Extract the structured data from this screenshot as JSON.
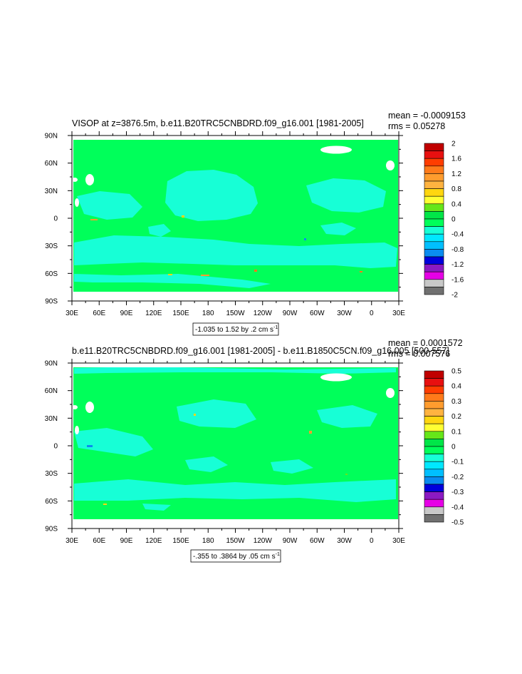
{
  "chart_data": [
    {
      "type": "heatmap",
      "title": "VISOP at z=3876.5m, b.e11.B20TRC5CNBDRD.f09_g16.001 [1981-2005]",
      "stats": {
        "mean": "mean = -0.0009153",
        "rms": "rms = 0.05278"
      },
      "xticks": [
        "30E",
        "60E",
        "90E",
        "120E",
        "150E",
        "180",
        "150W",
        "120W",
        "90W",
        "60W",
        "30W",
        "0",
        "30E"
      ],
      "yticks": [
        "90N",
        "60N",
        "30N",
        "0",
        "30S",
        "60S",
        "90S"
      ],
      "xlim_deg": [
        30,
        390
      ],
      "ylim_deg": [
        -90,
        90
      ],
      "dominant_value_band": [
        0,
        0.4
      ],
      "secondary_value_band": [
        -0.4,
        0
      ],
      "range_label": {
        "text": "-1.035 to 1.52 by .2 cm s",
        "sup": "-1"
      },
      "colorbar_labels": [
        "2",
        "1.6",
        "1.2",
        "0.8",
        "0.4",
        "0",
        "-0.4",
        "-0.8",
        "-1.2",
        "-1.6",
        "-2"
      ]
    },
    {
      "type": "heatmap",
      "title": "b.e11.B20TRC5CNBDRD.f09_g16.001 [1981-2005] - b.e11.B1850C5CN.f09_g16.005 [500-557]",
      "stats": {
        "mean": "mean = 0.0001572",
        "rms": "rms = 0.007576"
      },
      "xticks": [
        "30E",
        "60E",
        "90E",
        "120E",
        "150E",
        "180",
        "150W",
        "120W",
        "90W",
        "60W",
        "30W",
        "0",
        "30E"
      ],
      "yticks": [
        "90N",
        "60N",
        "30N",
        "0",
        "30S",
        "60S",
        "90S"
      ],
      "xlim_deg": [
        30,
        390
      ],
      "ylim_deg": [
        -90,
        90
      ],
      "dominant_value_band": [
        0,
        0.1
      ],
      "secondary_value_band": [
        -0.1,
        0
      ],
      "range_label": {
        "text": "-.355 to .3864 by .05 cm s",
        "sup": "-1"
      },
      "colorbar_labels": [
        "0.5",
        "0.4",
        "0.3",
        "0.2",
        "0.1",
        "0",
        "-0.1",
        "-0.2",
        "-0.3",
        "-0.4",
        "-0.5"
      ]
    }
  ],
  "colors": {
    "background": "#ffffff",
    "ocean_main": "#00ff5a",
    "ocean_secondary": "#17ffd6",
    "land": "#ffffff",
    "palette": [
      "#c00000",
      "#e81010",
      "#ff3d00",
      "#ff7a1a",
      "#ff9c2e",
      "#ffb340",
      "#ffd60f",
      "#ffff33",
      "#66e619",
      "#00e648",
      "#00ff5a",
      "#17ffd6",
      "#00e8ff",
      "#00bfff",
      "#0a8cf0",
      "#0000dd",
      "#8b1ac2",
      "#e600e6",
      "#c8c8c8",
      "#707070"
    ]
  }
}
